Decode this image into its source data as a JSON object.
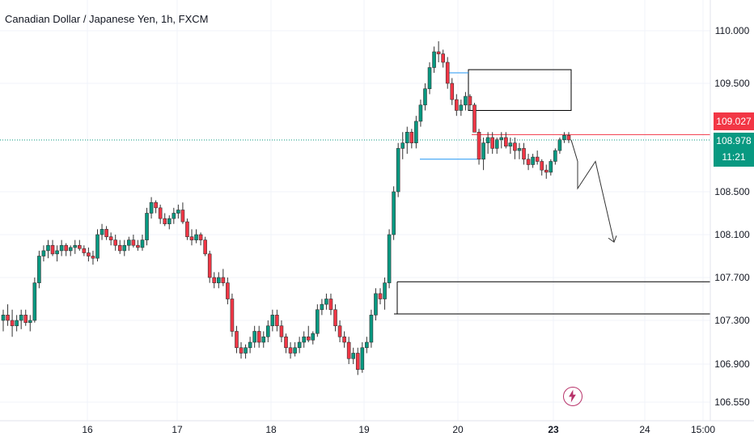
{
  "title": "Canadian Dollar / Japanese Yen, 1h, FXCM",
  "colors": {
    "up": "#089981",
    "down": "#f23645",
    "grid": "#f0f3fa",
    "text": "#131722",
    "level": "#000000",
    "blue": "#2962ff"
  },
  "price_marker": {
    "red_value": "109.027",
    "last_value": "108.978",
    "countdown": "11:21"
  },
  "chart_data": {
    "type": "candlestick",
    "title": "Canadian Dollar / Japanese Yen, 1h, FXCM",
    "y_ticks": [
      "110.000",
      "109.500",
      "108.500",
      "108.100",
      "107.700",
      "107.300",
      "106.900",
      "106.550"
    ],
    "x_ticks": [
      "16",
      "17",
      "18",
      "19",
      "20",
      "23",
      "24",
      "15:00"
    ],
    "ylim": [
      106.45,
      110.15
    ],
    "grid": true,
    "levels": [
      {
        "name": "supply-zone",
        "from": 109.25,
        "to": 109.63
      },
      {
        "name": "support-line-upper",
        "value": 107.66
      },
      {
        "name": "support-line-lower",
        "value": 107.36
      },
      {
        "name": "resistance-line",
        "value": 109.027
      }
    ],
    "projection": [
      108.978,
      108.78,
      108.53,
      108.78,
      108.03
    ],
    "candles": [
      [
        107.3,
        107.4,
        107.2,
        107.35
      ],
      [
        107.35,
        107.45,
        107.25,
        107.3
      ],
      [
        107.3,
        107.4,
        107.15,
        107.25
      ],
      [
        107.25,
        107.35,
        107.2,
        107.3
      ],
      [
        107.3,
        107.4,
        107.22,
        107.35
      ],
      [
        107.35,
        107.4,
        107.25,
        107.28
      ],
      [
        107.28,
        107.35,
        107.2,
        107.3
      ],
      [
        107.3,
        107.7,
        107.28,
        107.65
      ],
      [
        107.65,
        107.95,
        107.6,
        107.9
      ],
      [
        107.9,
        108.0,
        107.85,
        107.95
      ],
      [
        107.95,
        108.05,
        107.88,
        108.0
      ],
      [
        108.0,
        108.05,
        107.9,
        107.92
      ],
      [
        107.92,
        108.0,
        107.85,
        107.95
      ],
      [
        107.95,
        108.05,
        107.9,
        108.0
      ],
      [
        108.0,
        108.02,
        107.9,
        107.95
      ],
      [
        107.95,
        108.0,
        107.9,
        107.98
      ],
      [
        107.98,
        108.05,
        107.92,
        108.0
      ],
      [
        108.0,
        108.05,
        107.95,
        107.97
      ],
      [
        107.97,
        108.0,
        107.9,
        107.93
      ],
      [
        107.93,
        107.98,
        107.85,
        107.9
      ],
      [
        107.9,
        107.95,
        107.82,
        107.88
      ],
      [
        107.88,
        108.15,
        107.85,
        108.1
      ],
      [
        108.1,
        108.2,
        108.05,
        108.15
      ],
      [
        108.15,
        108.18,
        108.05,
        108.08
      ],
      [
        108.08,
        108.12,
        108.0,
        108.05
      ],
      [
        108.05,
        108.1,
        107.95,
        108.0
      ],
      [
        108.0,
        108.05,
        107.92,
        107.95
      ],
      [
        107.95,
        108.05,
        107.9,
        108.0
      ],
      [
        108.0,
        108.08,
        107.95,
        108.05
      ],
      [
        108.05,
        108.1,
        107.98,
        108.0
      ],
      [
        108.0,
        108.05,
        107.95,
        107.98
      ],
      [
        107.98,
        108.1,
        107.95,
        108.05
      ],
      [
        108.05,
        108.35,
        108.0,
        108.3
      ],
      [
        108.3,
        108.45,
        108.25,
        108.4
      ],
      [
        108.4,
        108.42,
        108.3,
        108.35
      ],
      [
        108.35,
        108.38,
        108.2,
        108.25
      ],
      [
        108.25,
        108.3,
        108.18,
        108.2
      ],
      [
        108.2,
        108.28,
        108.15,
        108.25
      ],
      [
        108.25,
        108.35,
        108.2,
        108.3
      ],
      [
        108.3,
        108.38,
        108.25,
        108.33
      ],
      [
        108.33,
        108.4,
        108.2,
        108.22
      ],
      [
        108.22,
        108.25,
        108.05,
        108.08
      ],
      [
        108.08,
        108.15,
        108.0,
        108.05
      ],
      [
        108.05,
        108.15,
        108.02,
        108.1
      ],
      [
        108.1,
        108.12,
        108.0,
        108.05
      ],
      [
        108.05,
        108.08,
        107.9,
        107.92
      ],
      [
        107.92,
        107.95,
        107.65,
        107.7
      ],
      [
        107.7,
        107.75,
        107.6,
        107.65
      ],
      [
        107.65,
        107.75,
        107.6,
        107.7
      ],
      [
        107.7,
        107.78,
        107.62,
        107.65
      ],
      [
        107.65,
        107.7,
        107.45,
        107.5
      ],
      [
        107.5,
        107.55,
        107.15,
        107.2
      ],
      [
        107.2,
        107.25,
        107.0,
        107.05
      ],
      [
        107.05,
        107.1,
        106.95,
        107.0
      ],
      [
        107.0,
        107.08,
        106.95,
        107.05
      ],
      [
        107.05,
        107.15,
        107.0,
        107.1
      ],
      [
        107.1,
        107.25,
        107.05,
        107.2
      ],
      [
        107.2,
        107.25,
        107.05,
        107.1
      ],
      [
        107.1,
        107.2,
        107.05,
        107.15
      ],
      [
        107.15,
        107.3,
        107.1,
        107.25
      ],
      [
        107.25,
        107.4,
        107.2,
        107.35
      ],
      [
        107.35,
        107.4,
        107.2,
        107.25
      ],
      [
        107.25,
        107.3,
        107.1,
        107.15
      ],
      [
        107.15,
        107.18,
        107.0,
        107.05
      ],
      [
        107.05,
        107.1,
        106.95,
        107.0
      ],
      [
        107.0,
        107.1,
        106.97,
        107.05
      ],
      [
        107.05,
        107.15,
        107.0,
        107.1
      ],
      [
        107.1,
        107.2,
        107.05,
        107.15
      ],
      [
        107.15,
        107.25,
        107.1,
        107.12
      ],
      [
        107.12,
        107.2,
        107.08,
        107.18
      ],
      [
        107.18,
        107.45,
        107.15,
        107.4
      ],
      [
        107.4,
        107.5,
        107.35,
        107.45
      ],
      [
        107.45,
        107.55,
        107.4,
        107.5
      ],
      [
        107.5,
        107.55,
        107.35,
        107.4
      ],
      [
        107.4,
        107.45,
        107.2,
        107.25
      ],
      [
        107.25,
        107.3,
        107.1,
        107.15
      ],
      [
        107.15,
        107.2,
        107.05,
        107.1
      ],
      [
        107.1,
        107.15,
        106.9,
        106.95
      ],
      [
        106.95,
        107.05,
        106.9,
        107.0
      ],
      [
        107.0,
        107.05,
        106.8,
        106.85
      ],
      [
        106.85,
        107.1,
        106.82,
        107.05
      ],
      [
        107.05,
        107.15,
        107.0,
        107.1
      ],
      [
        107.1,
        107.4,
        107.05,
        107.35
      ],
      [
        107.35,
        107.6,
        107.3,
        107.55
      ],
      [
        107.55,
        107.6,
        107.45,
        107.5
      ],
      [
        107.5,
        107.7,
        107.4,
        107.65
      ],
      [
        107.65,
        108.15,
        107.6,
        108.1
      ],
      [
        108.1,
        108.55,
        108.05,
        108.5
      ],
      [
        108.5,
        108.95,
        108.45,
        108.9
      ],
      [
        108.9,
        109.05,
        108.8,
        108.95
      ],
      [
        108.95,
        109.1,
        108.85,
        109.05
      ],
      [
        109.05,
        109.08,
        108.9,
        108.95
      ],
      [
        108.95,
        109.2,
        108.9,
        109.15
      ],
      [
        109.15,
        109.35,
        109.1,
        109.3
      ],
      [
        109.3,
        109.5,
        109.25,
        109.45
      ],
      [
        109.45,
        109.7,
        109.4,
        109.65
      ],
      [
        109.65,
        109.85,
        109.6,
        109.8
      ],
      [
        109.8,
        109.9,
        109.7,
        109.78
      ],
      [
        109.78,
        109.82,
        109.65,
        109.7
      ],
      [
        109.7,
        109.75,
        109.45,
        109.5
      ],
      [
        109.5,
        109.55,
        109.3,
        109.35
      ],
      [
        109.35,
        109.4,
        109.2,
        109.25
      ],
      [
        109.25,
        109.35,
        109.2,
        109.3
      ],
      [
        109.3,
        109.42,
        109.25,
        109.38
      ],
      [
        109.38,
        109.4,
        109.25,
        109.3
      ],
      [
        109.3,
        109.32,
        109.05,
        109.05
      ],
      [
        109.05,
        109.08,
        108.75,
        108.8
      ],
      [
        108.8,
        109.0,
        108.7,
        108.95
      ],
      [
        108.95,
        109.05,
        108.85,
        109.0
      ],
      [
        109.0,
        109.05,
        108.85,
        108.9
      ],
      [
        108.9,
        109.0,
        108.85,
        108.98
      ],
      [
        108.98,
        109.05,
        108.9,
        109.0
      ],
      [
        109.0,
        109.05,
        108.9,
        108.92
      ],
      [
        108.92,
        109.0,
        108.85,
        108.95
      ],
      [
        108.95,
        109.0,
        108.8,
        108.88
      ],
      [
        108.88,
        108.95,
        108.8,
        108.9
      ],
      [
        108.9,
        108.95,
        108.75,
        108.8
      ],
      [
        108.8,
        108.85,
        108.7,
        108.75
      ],
      [
        108.75,
        108.85,
        108.72,
        108.82
      ],
      [
        108.82,
        108.88,
        108.75,
        108.78
      ],
      [
        108.78,
        108.8,
        108.65,
        108.7
      ],
      [
        108.7,
        108.75,
        108.62,
        108.68
      ],
      [
        108.68,
        108.8,
        108.65,
        108.78
      ],
      [
        108.78,
        108.9,
        108.75,
        108.88
      ],
      [
        108.88,
        109.0,
        108.85,
        108.98
      ],
      [
        108.98,
        109.05,
        108.95,
        109.02
      ],
      [
        109.02,
        109.05,
        108.95,
        108.978
      ]
    ]
  }
}
